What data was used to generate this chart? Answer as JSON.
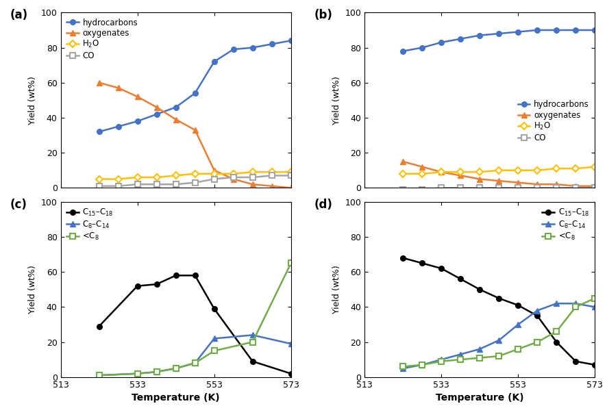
{
  "temp_a": [
    523,
    528,
    533,
    538,
    543,
    548,
    553,
    558,
    563,
    568,
    573
  ],
  "hydrocarbons_a": [
    32,
    35,
    38,
    42,
    46,
    54,
    72,
    79,
    80,
    82,
    84
  ],
  "oxygenates_a": [
    60,
    57,
    52,
    46,
    39,
    33,
    10,
    5,
    2,
    1,
    0
  ],
  "H2O_a": [
    5,
    5,
    6,
    6,
    7,
    8,
    8,
    8,
    9,
    9,
    9
  ],
  "CO_a": [
    1,
    1,
    2,
    2,
    2,
    3,
    5,
    6,
    6,
    7,
    7
  ],
  "temp_b": [
    523,
    528,
    533,
    538,
    543,
    548,
    553,
    558,
    563,
    568,
    573
  ],
  "hydrocarbons_b": [
    78,
    80,
    83,
    85,
    87,
    88,
    89,
    90,
    90,
    90,
    90
  ],
  "oxygenates_b": [
    15,
    12,
    9,
    7,
    5,
    4,
    3,
    2,
    2,
    1,
    1
  ],
  "H2O_b": [
    8,
    8,
    9,
    9,
    9,
    10,
    10,
    10,
    11,
    11,
    12
  ],
  "CO_b": [
    -1,
    -1,
    0,
    0,
    0,
    0,
    0,
    0,
    0,
    0,
    0
  ],
  "temp_c": [
    523,
    528,
    533,
    538,
    543,
    548,
    553,
    558,
    563,
    568,
    573
  ],
  "C1518_c": [
    29,
    null,
    52,
    53,
    58,
    58,
    39,
    null,
    9,
    null,
    2
  ],
  "C814_c": [
    1,
    null,
    2,
    3,
    5,
    8,
    22,
    null,
    24,
    null,
    19
  ],
  "ltC8_c": [
    1,
    null,
    2,
    3,
    5,
    8,
    15,
    null,
    20,
    null,
    65
  ],
  "temp_d": [
    523,
    528,
    533,
    538,
    543,
    548,
    553,
    558,
    563,
    568,
    573
  ],
  "C1518_d": [
    68,
    65,
    62,
    56,
    50,
    45,
    41,
    35,
    20,
    9,
    7
  ],
  "C814_d": [
    5,
    7,
    10,
    13,
    16,
    21,
    30,
    38,
    42,
    42,
    40
  ],
  "ltC8_d": [
    6,
    7,
    9,
    10,
    11,
    12,
    16,
    20,
    26,
    40,
    45
  ],
  "color_hydrocarbons": "#4472C4",
  "color_oxygenates": "#ED7D31",
  "color_H2O": "#FFC000",
  "color_CO": "#A5A5A5",
  "color_C1518": "#000000",
  "color_C814": "#4472C4",
  "color_ltC8": "#70AD47",
  "panel_labels": [
    "(a)",
    "(b)",
    "(c)",
    "(d)"
  ],
  "ylabel": "Yield (wt%)",
  "xlabel": "Temperature (K)",
  "ylim": [
    -5,
    100
  ]
}
